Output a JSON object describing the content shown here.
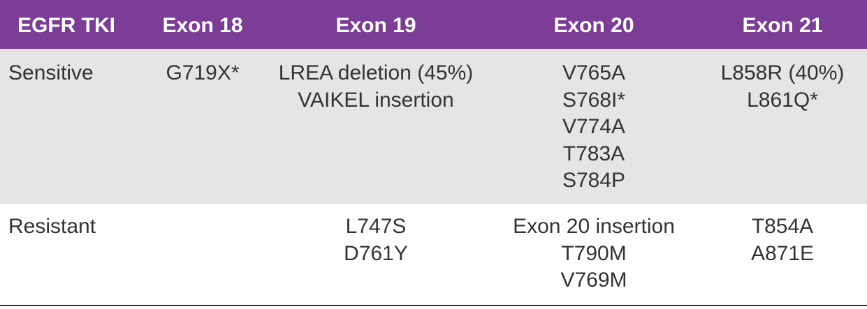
{
  "header": {
    "col1": "EGFR TKI",
    "col2": "Exon 18",
    "col3": "Exon 19",
    "col4": "Exon 20",
    "col5": "Exon 21"
  },
  "colors": {
    "header_bg": "#7c3d96",
    "header_text": "#ffffff",
    "sensitive_row_bg": "#e5e5e6",
    "body_text": "#333333",
    "rule": "#3a3a3a"
  },
  "rows": [
    {
      "label": "Sensitive",
      "exon18": [
        "G719X*"
      ],
      "exon19": [
        "LREA deletion (45%)",
        "VAIKEL insertion"
      ],
      "exon20": [
        "V765A",
        "S768I*",
        "V774A",
        "T783A",
        "S784P"
      ],
      "exon21": [
        "L858R (40%)",
        "L861Q*"
      ]
    },
    {
      "label": "Resistant",
      "exon18": [],
      "exon19": [
        "L747S",
        "D761Y"
      ],
      "exon20": [
        "Exon 20 insertion",
        "T790M",
        "V769M"
      ],
      "exon21": [
        "T854A",
        "A871E"
      ]
    }
  ]
}
